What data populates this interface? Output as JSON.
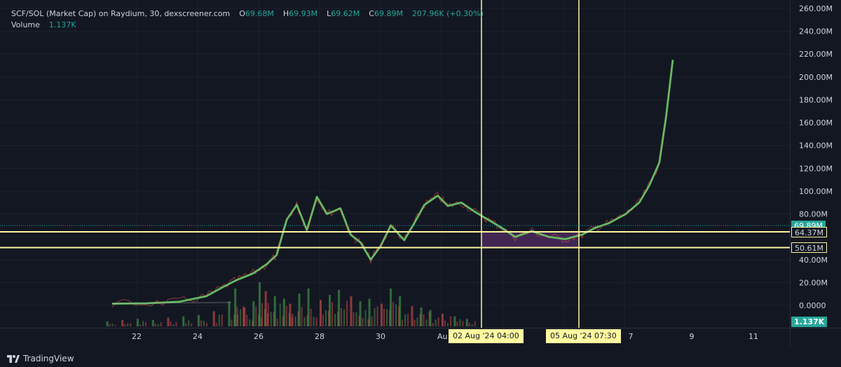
{
  "legend": {
    "symbol": "SCF/SOL (Market Cap) on Raydium, 30, dexscreener.com",
    "o_label": "O",
    "o_value": "69.68M",
    "h_label": "H",
    "h_value": "69.93M",
    "l_label": "L",
    "l_value": "69.62M",
    "c_label": "C",
    "c_value": "69.89M",
    "change": "207.96K (+0.30%)",
    "volume_label": "Volume",
    "volume_value": "1.137K"
  },
  "price_tags": {
    "last": "69.89M",
    "level_top": "64.37M",
    "level_bottom": "50.61M",
    "volume": "1.137K"
  },
  "time_tags": {
    "left": "02 Aug '24   04:00",
    "right": "05 Aug '24   07:30"
  },
  "branding": {
    "name": "TradingView"
  },
  "colors": {
    "background": "#131722",
    "up": "#4caf50",
    "down": "#ef5350",
    "line": "#fff59d",
    "highlight_box": "#4a2a5a",
    "last_price": "#26a69a"
  },
  "chart_data": {
    "type": "line",
    "x_tick_labels": [
      "22",
      "24",
      "26",
      "28",
      "30",
      "Au",
      "7",
      "9",
      "11"
    ],
    "y_tick_labels": [
      "260.00M",
      "240.00M",
      "220.00M",
      "200.00M",
      "180.00M",
      "160.00M",
      "140.00M",
      "120.00M",
      "100.00M",
      "80.00M",
      "40.00M",
      "20.00M",
      "0.0000"
    ],
    "y_unit": "M",
    "ylim": [
      0,
      260
    ],
    "x_range_days": [
      20.5,
      37.8
    ],
    "series": [
      {
        "values_xy": [
          [
            21.0,
            1.5
          ],
          [
            22.0,
            1.8
          ],
          [
            23.0,
            3.2
          ],
          [
            23.8,
            8
          ],
          [
            24.3,
            16
          ],
          [
            24.7,
            22
          ],
          [
            25.2,
            28
          ],
          [
            25.6,
            36
          ],
          [
            25.9,
            44
          ],
          [
            26.2,
            75
          ],
          [
            26.5,
            88
          ],
          [
            26.8,
            66
          ],
          [
            27.1,
            95
          ],
          [
            27.4,
            80
          ],
          [
            27.8,
            85
          ],
          [
            28.1,
            62
          ],
          [
            28.4,
            55
          ],
          [
            28.7,
            40
          ],
          [
            29.0,
            52
          ],
          [
            29.3,
            70
          ],
          [
            29.7,
            57
          ],
          [
            30.0,
            72
          ],
          [
            30.3,
            88
          ],
          [
            30.7,
            96
          ],
          [
            31.0,
            87
          ],
          [
            31.4,
            90
          ],
          [
            31.8,
            82
          ],
          [
            32.2,
            75
          ],
          [
            32.6,
            68
          ],
          [
            33.0,
            60
          ],
          [
            33.5,
            65
          ],
          [
            34.0,
            60
          ],
          [
            34.5,
            58
          ],
          [
            35.0,
            62
          ],
          [
            35.4,
            68
          ],
          [
            35.8,
            72
          ],
          [
            36.3,
            80
          ],
          [
            36.7,
            90
          ],
          [
            37.0,
            105
          ],
          [
            37.3,
            125
          ],
          [
            37.5,
            165
          ],
          [
            37.7,
            215
          ]
        ]
      }
    ],
    "volume_bars": [
      [
        21.0,
        0.4
      ],
      [
        21.5,
        0.5
      ],
      [
        22.0,
        0.6
      ],
      [
        22.5,
        0.5
      ],
      [
        23.0,
        0.7
      ],
      [
        23.5,
        0.8
      ],
      [
        24.0,
        0.9
      ],
      [
        24.5,
        1.2
      ],
      [
        25.0,
        2.0
      ],
      [
        25.2,
        3.0
      ],
      [
        25.5,
        1.5
      ],
      [
        25.8,
        2.0
      ],
      [
        26.0,
        3.5
      ],
      [
        26.2,
        2.8
      ],
      [
        26.5,
        2.4
      ],
      [
        26.8,
        2.2
      ],
      [
        27.0,
        1.8
      ],
      [
        27.3,
        2.6
      ],
      [
        27.6,
        3.0
      ],
      [
        28.0,
        2.1
      ],
      [
        28.3,
        2.5
      ],
      [
        28.6,
        2.9
      ],
      [
        29.0,
        2.4
      ],
      [
        29.3,
        2.0
      ],
      [
        29.6,
        2.2
      ],
      [
        30.0,
        1.8
      ],
      [
        30.3,
        3.0
      ],
      [
        30.6,
        2.4
      ],
      [
        31.0,
        1.6
      ],
      [
        31.3,
        1.5
      ],
      [
        31.6,
        1.3
      ],
      [
        32.0,
        1.0
      ],
      [
        32.4,
        0.8
      ],
      [
        32.8,
        0.6
      ]
    ],
    "horizontal_levels": [
      64.37,
      50.61
    ],
    "vertical_lines_days": [
      33.17,
      36.31
    ],
    "highlight_box": {
      "from_day": 33.17,
      "to_day": 36.31,
      "low": 50.61,
      "high": 64.37
    },
    "last_price": 69.89,
    "grid": true,
    "legend_position": "top-left"
  }
}
